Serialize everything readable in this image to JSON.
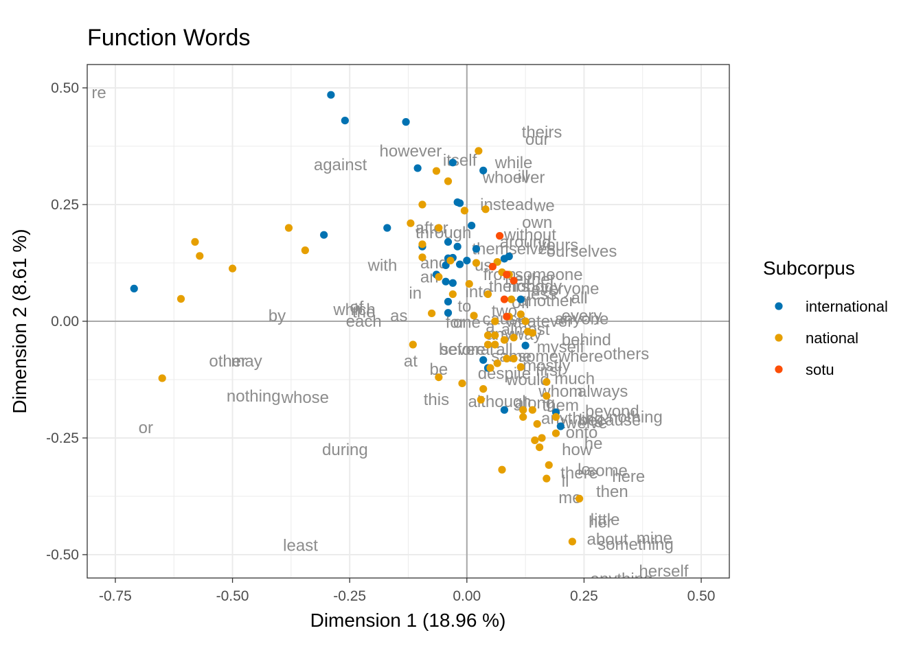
{
  "chart_data": {
    "type": "scatter",
    "title": "Function Words",
    "xlabel": "Dimension 1 (18.96 %)",
    "ylabel": "Dimension 2 (8.61 %)",
    "xlim": [
      -0.81,
      0.56
    ],
    "ylim": [
      -0.55,
      0.55
    ],
    "x_ticks": [
      -0.75,
      -0.5,
      -0.25,
      0.0,
      0.25,
      0.5
    ],
    "x_tick_labels": [
      "-0.75",
      "-0.50",
      "-0.25",
      "0.00",
      "0.25",
      "0.50"
    ],
    "y_ticks": [
      -0.5,
      -0.25,
      0.0,
      0.25,
      0.5
    ],
    "y_tick_labels": [
      "-0.50",
      "-0.25",
      "0.00",
      "0.25",
      "0.50"
    ],
    "grid": true,
    "reference_lines": {
      "x": 0.0,
      "y": 0.0
    },
    "legend": {
      "title": "Subcorpus",
      "position": "right",
      "entries": [
        {
          "name": "international",
          "color": "#0072B2"
        },
        {
          "name": "national",
          "color": "#E69F00"
        },
        {
          "name": "sotu",
          "color": "#FC4E07"
        }
      ]
    },
    "series": [
      {
        "name": "international",
        "color": "#0072B2",
        "points": [
          [
            -0.29,
            0.485
          ],
          [
            -0.26,
            0.43
          ],
          [
            -0.13,
            0.427
          ],
          [
            -0.71,
            0.07
          ],
          [
            -0.305,
            0.185
          ],
          [
            -0.17,
            0.2
          ],
          [
            -0.105,
            0.328
          ],
          [
            -0.03,
            0.34
          ],
          [
            0.035,
            0.323
          ],
          [
            -0.02,
            0.255
          ],
          [
            -0.015,
            0.253
          ],
          [
            0.01,
            0.205
          ],
          [
            -0.095,
            0.16
          ],
          [
            -0.04,
            0.17
          ],
          [
            -0.02,
            0.16
          ],
          [
            0.02,
            0.155
          ],
          [
            -0.04,
            0.135
          ],
          [
            -0.03,
            0.136
          ],
          [
            -0.015,
            0.122
          ],
          [
            0.0,
            0.13
          ],
          [
            -0.045,
            0.12
          ],
          [
            -0.065,
            0.1
          ],
          [
            -0.03,
            0.082
          ],
          [
            -0.045,
            0.085
          ],
          [
            -0.04,
            0.042
          ],
          [
            -0.04,
            0.018
          ],
          [
            0.08,
            0.134
          ],
          [
            0.09,
            0.139
          ],
          [
            0.115,
            0.047
          ],
          [
            0.125,
            -0.052
          ],
          [
            0.035,
            -0.083
          ],
          [
            0.045,
            -0.1
          ],
          [
            0.08,
            -0.19
          ],
          [
            0.19,
            -0.195
          ],
          [
            0.2,
            -0.225
          ]
        ]
      },
      {
        "name": "national",
        "color": "#E69F00",
        "points": [
          [
            0.025,
            0.365
          ],
          [
            -0.065,
            0.322
          ],
          [
            -0.04,
            0.3
          ],
          [
            -0.095,
            0.25
          ],
          [
            -0.005,
            0.237
          ],
          [
            0.04,
            0.24
          ],
          [
            -0.38,
            0.2
          ],
          [
            -0.12,
            0.21
          ],
          [
            -0.06,
            0.2
          ],
          [
            -0.58,
            0.17
          ],
          [
            -0.57,
            0.14
          ],
          [
            -0.345,
            0.152
          ],
          [
            -0.5,
            0.113
          ],
          [
            -0.095,
            0.165
          ],
          [
            -0.095,
            0.137
          ],
          [
            -0.035,
            0.13
          ],
          [
            0.02,
            0.125
          ],
          [
            0.065,
            0.127
          ],
          [
            0.075,
            0.105
          ],
          [
            -0.06,
            0.095
          ],
          [
            0.005,
            0.08
          ],
          [
            0.09,
            0.1
          ],
          [
            -0.03,
            0.058
          ],
          [
            0.045,
            0.058
          ],
          [
            0.095,
            0.047
          ],
          [
            -0.61,
            0.048
          ],
          [
            0.015,
            0.012
          ],
          [
            0.09,
            0.01
          ],
          [
            -0.075,
            0.017
          ],
          [
            0.115,
            0.015
          ],
          [
            0.125,
            0.0
          ],
          [
            0.06,
            0.0
          ],
          [
            0.13,
            -0.022
          ],
          [
            0.14,
            -0.025
          ],
          [
            0.045,
            -0.03
          ],
          [
            0.06,
            -0.03
          ],
          [
            0.08,
            -0.04
          ],
          [
            0.1,
            -0.035
          ],
          [
            -0.115,
            -0.05
          ],
          [
            0.06,
            -0.05
          ],
          [
            0.045,
            -0.05
          ],
          [
            0.085,
            -0.08
          ],
          [
            0.1,
            -0.08
          ],
          [
            0.065,
            -0.09
          ],
          [
            0.05,
            -0.1
          ],
          [
            0.115,
            -0.098
          ],
          [
            -0.06,
            -0.12
          ],
          [
            -0.65,
            -0.122
          ],
          [
            -0.01,
            -0.133
          ],
          [
            0.17,
            -0.13
          ],
          [
            0.035,
            -0.145
          ],
          [
            0.03,
            -0.168
          ],
          [
            0.17,
            -0.16
          ],
          [
            0.12,
            -0.19
          ],
          [
            0.14,
            -0.19
          ],
          [
            0.12,
            -0.205
          ],
          [
            0.19,
            -0.205
          ],
          [
            0.15,
            -0.22
          ],
          [
            0.19,
            -0.24
          ],
          [
            0.145,
            -0.255
          ],
          [
            0.16,
            -0.25
          ],
          [
            0.155,
            -0.27
          ],
          [
            0.075,
            -0.318
          ],
          [
            0.175,
            -0.308
          ],
          [
            0.17,
            -0.337
          ],
          [
            0.24,
            -0.38
          ],
          [
            0.225,
            -0.472
          ]
        ]
      },
      {
        "name": "sotu",
        "color": "#FC4E07",
        "points": [
          [
            0.07,
            0.183
          ],
          [
            0.055,
            0.117
          ],
          [
            0.085,
            0.1
          ],
          [
            0.1,
            0.087
          ],
          [
            0.08,
            0.047
          ],
          [
            0.085,
            0.01
          ]
        ]
      }
    ],
    "labels": [
      {
        "text": "re",
        "x": -0.785,
        "y": 0.49
      },
      {
        "text": "theirs",
        "x": 0.16,
        "y": 0.405
      },
      {
        "text": "our",
        "x": 0.15,
        "y": 0.39
      },
      {
        "text": "however",
        "x": -0.12,
        "y": 0.365
      },
      {
        "text": "itself",
        "x": -0.015,
        "y": 0.345
      },
      {
        "text": "while",
        "x": 0.1,
        "y": 0.34
      },
      {
        "text": "against",
        "x": -0.27,
        "y": 0.335
      },
      {
        "text": "whoever",
        "x": 0.1,
        "y": 0.308
      },
      {
        "text": "ill",
        "x": 0.12,
        "y": 0.31
      },
      {
        "text": "instead",
        "x": 0.085,
        "y": 0.25
      },
      {
        "text": "we",
        "x": 0.165,
        "y": 0.248
      },
      {
        "text": "own",
        "x": 0.15,
        "y": 0.212
      },
      {
        "text": "after",
        "x": -0.075,
        "y": 0.2
      },
      {
        "text": "through",
        "x": -0.05,
        "y": 0.19
      },
      {
        "text": "without",
        "x": 0.135,
        "y": 0.185
      },
      {
        "text": "around",
        "x": 0.125,
        "y": 0.17
      },
      {
        "text": "yours",
        "x": 0.195,
        "y": 0.163
      },
      {
        "text": "themselves",
        "x": 0.1,
        "y": 0.155
      },
      {
        "text": "ourselves",
        "x": 0.245,
        "y": 0.15
      },
      {
        "text": "with",
        "x": -0.18,
        "y": 0.12
      },
      {
        "text": "and",
        "x": -0.07,
        "y": 0.125
      },
      {
        "text": "us",
        "x": 0.035,
        "y": 0.12
      },
      {
        "text": "from",
        "x": 0.07,
        "y": 0.1
      },
      {
        "text": "someone",
        "x": 0.175,
        "y": 0.1
      },
      {
        "text": "an",
        "x": -0.08,
        "y": 0.095
      },
      {
        "text": "neither",
        "x": 0.135,
        "y": 0.09
      },
      {
        "text": "theirs",
        "x": 0.09,
        "y": 0.075
      },
      {
        "text": "nobody",
        "x": 0.145,
        "y": 0.075
      },
      {
        "text": "everyone",
        "x": 0.21,
        "y": 0.07
      },
      {
        "text": "into",
        "x": 0.025,
        "y": 0.063
      },
      {
        "text": "less",
        "x": 0.16,
        "y": 0.058
      },
      {
        "text": "all",
        "x": 0.24,
        "y": 0.05
      },
      {
        "text": "in",
        "x": -0.11,
        "y": 0.06
      },
      {
        "text": "another",
        "x": 0.17,
        "y": 0.044
      },
      {
        "text": "off",
        "x": 0.115,
        "y": 0.04
      },
      {
        "text": "to",
        "x": -0.005,
        "y": 0.032
      },
      {
        "text": "of",
        "x": -0.235,
        "y": 0.03
      },
      {
        "text": "which",
        "x": -0.24,
        "y": 0.025
      },
      {
        "text": "the",
        "x": -0.22,
        "y": 0.02
      },
      {
        "text": "two",
        "x": 0.08,
        "y": 0.022
      },
      {
        "text": "every",
        "x": 0.245,
        "y": 0.012
      },
      {
        "text": "by",
        "x": -0.405,
        "y": 0.012
      },
      {
        "text": "as",
        "x": -0.145,
        "y": 0.012
      },
      {
        "text": "each",
        "x": -0.22,
        "y": 0.0
      },
      {
        "text": "anyone",
        "x": 0.245,
        "y": 0.005
      },
      {
        "text": "for",
        "x": -0.025,
        "y": -0.002
      },
      {
        "text": "one",
        "x": 0.0,
        "y": -0.002
      },
      {
        "text": "cause",
        "x": 0.08,
        "y": 0.005
      },
      {
        "text": "whatever",
        "x": 0.155,
        "y": 0.0
      },
      {
        "text": "almost",
        "x": 0.125,
        "y": -0.018
      },
      {
        "text": "a",
        "x": 0.05,
        "y": -0.012
      },
      {
        "text": "behind",
        "x": 0.255,
        "y": -0.04
      },
      {
        "text": "anyway",
        "x": 0.1,
        "y": -0.028
      },
      {
        "text": "myself",
        "x": 0.2,
        "y": -0.055
      },
      {
        "text": "before",
        "x": -0.01,
        "y": -0.06
      },
      {
        "text": "several",
        "x": 0.0,
        "y": -0.06
      },
      {
        "text": "all",
        "x": 0.08,
        "y": -0.06
      },
      {
        "text": "same",
        "x": 0.095,
        "y": -0.075
      },
      {
        "text": "somewhere",
        "x": 0.2,
        "y": -0.075
      },
      {
        "text": "others",
        "x": 0.34,
        "y": -0.07
      },
      {
        "text": "at",
        "x": -0.12,
        "y": -0.085
      },
      {
        "text": "other",
        "x": -0.51,
        "y": -0.085
      },
      {
        "text": "may",
        "x": -0.47,
        "y": -0.085
      },
      {
        "text": "mostly",
        "x": 0.17,
        "y": -0.095
      },
      {
        "text": "be",
        "x": -0.06,
        "y": -0.103
      },
      {
        "text": "despite",
        "x": 0.08,
        "y": -0.112
      },
      {
        "text": "first",
        "x": 0.175,
        "y": -0.105
      },
      {
        "text": "would",
        "x": 0.13,
        "y": -0.125
      },
      {
        "text": "much",
        "x": 0.23,
        "y": -0.123
      },
      {
        "text": "always",
        "x": 0.29,
        "y": -0.15
      },
      {
        "text": "whom",
        "x": 0.2,
        "y": -0.15
      },
      {
        "text": "this",
        "x": -0.065,
        "y": -0.168
      },
      {
        "text": "nothing",
        "x": -0.455,
        "y": -0.16
      },
      {
        "text": "whose",
        "x": -0.345,
        "y": -0.163
      },
      {
        "text": "although",
        "x": 0.07,
        "y": -0.172
      },
      {
        "text": "along",
        "x": 0.145,
        "y": -0.175
      },
      {
        "text": "them",
        "x": 0.2,
        "y": -0.18
      },
      {
        "text": "beyond",
        "x": 0.31,
        "y": -0.193
      },
      {
        "text": "nothing",
        "x": 0.36,
        "y": -0.205
      },
      {
        "text": "anything",
        "x": 0.225,
        "y": -0.208
      },
      {
        "text": "because",
        "x": 0.305,
        "y": -0.212
      },
      {
        "text": "twelve",
        "x": 0.25,
        "y": -0.218
      },
      {
        "text": "onto",
        "x": 0.245,
        "y": -0.238
      },
      {
        "text": "or",
        "x": -0.685,
        "y": -0.228
      },
      {
        "text": "he",
        "x": 0.27,
        "y": -0.262
      },
      {
        "text": "during",
        "x": -0.26,
        "y": -0.275
      },
      {
        "text": "how",
        "x": 0.235,
        "y": -0.275
      },
      {
        "text": "lo",
        "x": 0.25,
        "y": -0.318
      },
      {
        "text": "some",
        "x": 0.3,
        "y": -0.32
      },
      {
        "text": "there",
        "x": 0.24,
        "y": -0.325
      },
      {
        "text": "here",
        "x": 0.345,
        "y": -0.332
      },
      {
        "text": "ll",
        "x": 0.21,
        "y": -0.343
      },
      {
        "text": "then",
        "x": 0.31,
        "y": -0.365
      },
      {
        "text": "me",
        "x": 0.22,
        "y": -0.378
      },
      {
        "text": "little",
        "x": 0.295,
        "y": -0.425
      },
      {
        "text": "her",
        "x": 0.285,
        "y": -0.43
      },
      {
        "text": "about",
        "x": 0.3,
        "y": -0.467
      },
      {
        "text": "mine",
        "x": 0.4,
        "y": -0.465
      },
      {
        "text": "something",
        "x": 0.36,
        "y": -0.478
      },
      {
        "text": "least",
        "x": -0.355,
        "y": -0.48
      },
      {
        "text": "herself",
        "x": 0.42,
        "y": -0.535
      },
      {
        "text": "anything",
        "x": 0.33,
        "y": -0.552
      }
    ]
  }
}
